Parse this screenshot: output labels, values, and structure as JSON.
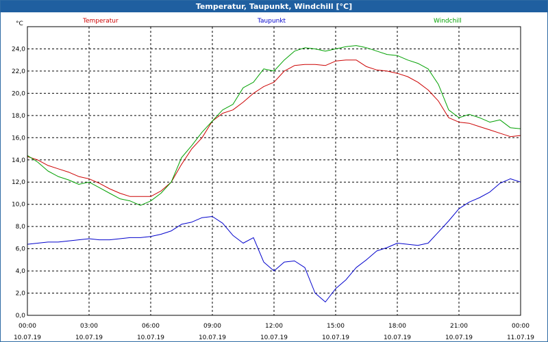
{
  "window": {
    "title": "Temperatur, Taupunkt, Windchill [°C]"
  },
  "colors": {
    "title_bar": "#1f5fa0",
    "temperatur": "#cc0000",
    "taupunkt": "#0000cc",
    "windchill": "#00a000"
  },
  "chart_data": {
    "type": "line",
    "title": "Temperatur, Taupunkt, Windchill [°C]",
    "ylabel": "°C",
    "xlabel": "",
    "ylim": [
      0,
      26
    ],
    "y_ticks": [
      "0,0",
      "2,0",
      "4,0",
      "6,0",
      "8,0",
      "10,0",
      "12,0",
      "14,0",
      "16,0",
      "18,0",
      "20,0",
      "22,0",
      "24,0"
    ],
    "x_range_hours": [
      0,
      24
    ],
    "x_ticks": [
      {
        "time": "00:00",
        "date": "10.07.19"
      },
      {
        "time": "03:00",
        "date": "10.07.19"
      },
      {
        "time": "06:00",
        "date": "10.07.19"
      },
      {
        "time": "09:00",
        "date": "10.07.19"
      },
      {
        "time": "12:00",
        "date": "10.07.19"
      },
      {
        "time": "15:00",
        "date": "10.07.19"
      },
      {
        "time": "18:00",
        "date": "10.07.19"
      },
      {
        "time": "21:00",
        "date": "10.07.19"
      },
      {
        "time": "00:00",
        "date": "11.07.19"
      }
    ],
    "grid": true,
    "series": [
      {
        "name": "Temperatur",
        "color": "#cc0000",
        "x": [
          0,
          0.5,
          1,
          1.5,
          2,
          2.5,
          3,
          3.5,
          4,
          4.5,
          5,
          5.5,
          6,
          6.5,
          7,
          7.5,
          8,
          8.5,
          9,
          9.5,
          10,
          10.5,
          11,
          11.5,
          12,
          12.5,
          13,
          13.5,
          14,
          14.5,
          15,
          15.5,
          16,
          16.5,
          17,
          17.5,
          18,
          18.5,
          19,
          19.5,
          20,
          20.5,
          21,
          21.5,
          22,
          22.5,
          23,
          23.5,
          24
        ],
        "y": [
          14.3,
          14,
          13.5,
          13.2,
          12.9,
          12.5,
          12.3,
          11.9,
          11.4,
          11,
          10.7,
          10.7,
          10.7,
          11.2,
          12,
          13.6,
          15,
          16,
          17.5,
          18.2,
          18.5,
          19.2,
          20,
          20.6,
          21,
          22,
          22.5,
          22.6,
          22.6,
          22.5,
          22.9,
          23,
          23,
          22.4,
          22.1,
          22,
          21.8,
          21.5,
          21,
          20.3,
          19.3,
          17.8,
          17.4,
          17.3,
          17,
          16.7,
          16.4,
          16.1,
          16.2
        ]
      },
      {
        "name": "Taupunkt",
        "color": "#0000cc",
        "x": [
          0,
          0.5,
          1,
          1.5,
          2,
          2.5,
          3,
          3.5,
          4,
          4.5,
          5,
          5.5,
          6,
          6.5,
          7,
          7.5,
          8,
          8.5,
          9,
          9.5,
          10,
          10.5,
          11,
          11.5,
          12,
          12.5,
          13,
          13.5,
          14,
          14.5,
          15,
          15.5,
          16,
          16.5,
          17,
          17.5,
          18,
          18.5,
          19,
          19.5,
          20,
          20.5,
          21,
          21.5,
          22,
          22.5,
          23,
          23.5,
          24
        ],
        "y": [
          6.4,
          6.5,
          6.6,
          6.6,
          6.7,
          6.8,
          6.9,
          6.8,
          6.8,
          6.9,
          7,
          7,
          7.1,
          7.3,
          7.6,
          8.2,
          8.4,
          8.8,
          8.9,
          8.3,
          7.2,
          6.5,
          7,
          4.8,
          4,
          4.8,
          4.9,
          4.3,
          2,
          1.2,
          2.4,
          3.2,
          4.3,
          5,
          5.8,
          6.1,
          6.5,
          6.4,
          6.3,
          6.5,
          7.5,
          8.5,
          9.6,
          10.2,
          10.6,
          11.1,
          11.9,
          12.3,
          12
        ]
      },
      {
        "name": "Windchill",
        "color": "#00a000",
        "x": [
          0,
          0.5,
          1,
          1.5,
          2,
          2.5,
          3,
          3.5,
          4,
          4.5,
          5,
          5.5,
          6,
          6.5,
          7,
          7.5,
          8,
          8.5,
          9,
          9.5,
          10,
          10.5,
          11,
          11.5,
          12,
          12.5,
          13,
          13.5,
          14,
          14.5,
          15,
          15.5,
          16,
          16.5,
          17,
          17.5,
          18,
          18.5,
          19,
          19.5,
          20,
          20.5,
          21,
          21.5,
          22,
          22.5,
          23,
          23.5,
          24
        ],
        "y": [
          14.4,
          13.8,
          13,
          12.5,
          12.2,
          11.8,
          12,
          11.5,
          11,
          10.5,
          10.3,
          9.9,
          10.3,
          11,
          12,
          14.2,
          15.3,
          16.5,
          17.5,
          18.5,
          19,
          20.5,
          21,
          22.2,
          22,
          23,
          23.8,
          24.1,
          24,
          23.8,
          24,
          24.2,
          24.3,
          24.1,
          23.8,
          23.5,
          23.4,
          23,
          22.7,
          22.2,
          20.8,
          18.5,
          17.8,
          18.1,
          17.8,
          17.4,
          17.6,
          16.9,
          16.8
        ]
      }
    ]
  }
}
